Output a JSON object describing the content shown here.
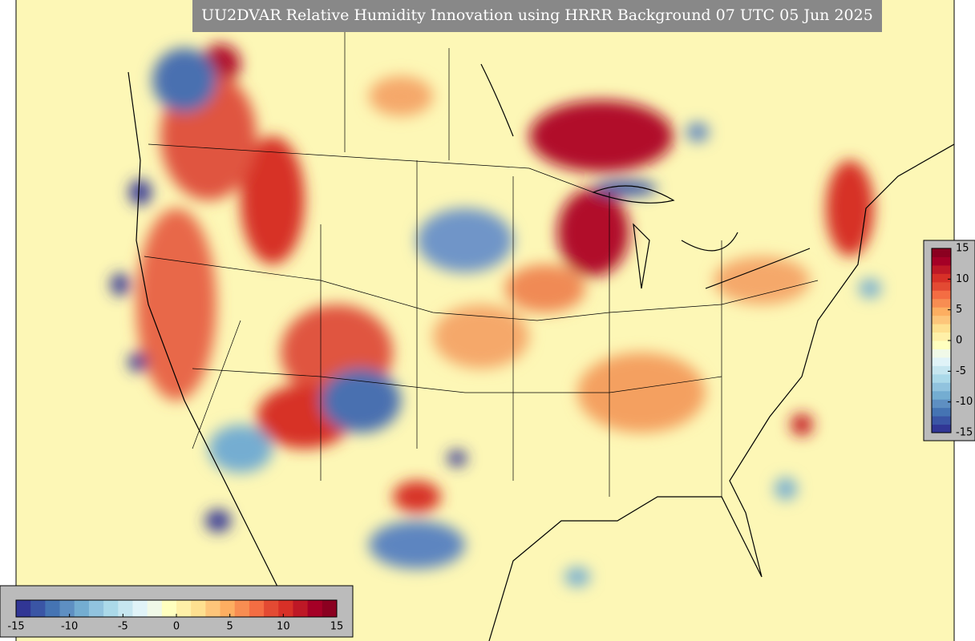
{
  "title": "UU2DVAR Relative Humidity Innovation using HRRR Background 07 UTC 05 Jun 2025",
  "colorbars": [
    {
      "orientation": "vertical",
      "range": [
        -15,
        15
      ],
      "ticks": [
        -15,
        -10,
        -5,
        0,
        5,
        10,
        15
      ]
    },
    {
      "orientation": "horizontal",
      "range": [
        -15,
        15
      ],
      "ticks": [
        -15,
        -10,
        -5,
        0,
        5,
        10,
        15
      ]
    }
  ],
  "colors": [
    "#313695",
    "#3a55a5",
    "#4574b3",
    "#5e8fc2",
    "#74add1",
    "#91c3de",
    "#abd9e9",
    "#c6e6f0",
    "#e0f3f8",
    "#f0f9e8",
    "#ffffbf",
    "#fff0a8",
    "#fee090",
    "#fdc57a",
    "#fdae61",
    "#f88d52",
    "#f46d43",
    "#e34a33",
    "#d73027",
    "#be1826",
    "#a50026",
    "#8b0020"
  ]
}
